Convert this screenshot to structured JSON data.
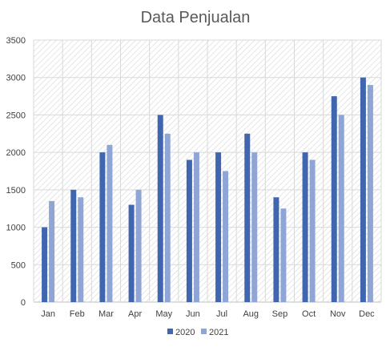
{
  "chart_data": {
    "type": "bar",
    "title": "Data Penjualan",
    "xlabel": "",
    "ylabel": "",
    "categories": [
      "Jan",
      "Feb",
      "Mar",
      "Apr",
      "May",
      "Jun",
      "Jul",
      "Aug",
      "Sep",
      "Oct",
      "Nov",
      "Dec"
    ],
    "series": [
      {
        "name": "2020",
        "color": "#4066AF",
        "values": [
          1000,
          1500,
          2000,
          1300,
          2500,
          1900,
          2000,
          2250,
          1400,
          2000,
          2750,
          3000
        ]
      },
      {
        "name": "2021",
        "color": "#8FA5D6",
        "values": [
          1350,
          1400,
          2100,
          1500,
          2250,
          2000,
          1750,
          2000,
          1250,
          1900,
          2500,
          2900
        ]
      }
    ],
    "ylim": [
      0,
      3500
    ],
    "yticks": [
      0,
      500,
      1000,
      1500,
      2000,
      2500,
      3000,
      3500
    ],
    "grid": true,
    "legend_position": "bottom-center"
  }
}
